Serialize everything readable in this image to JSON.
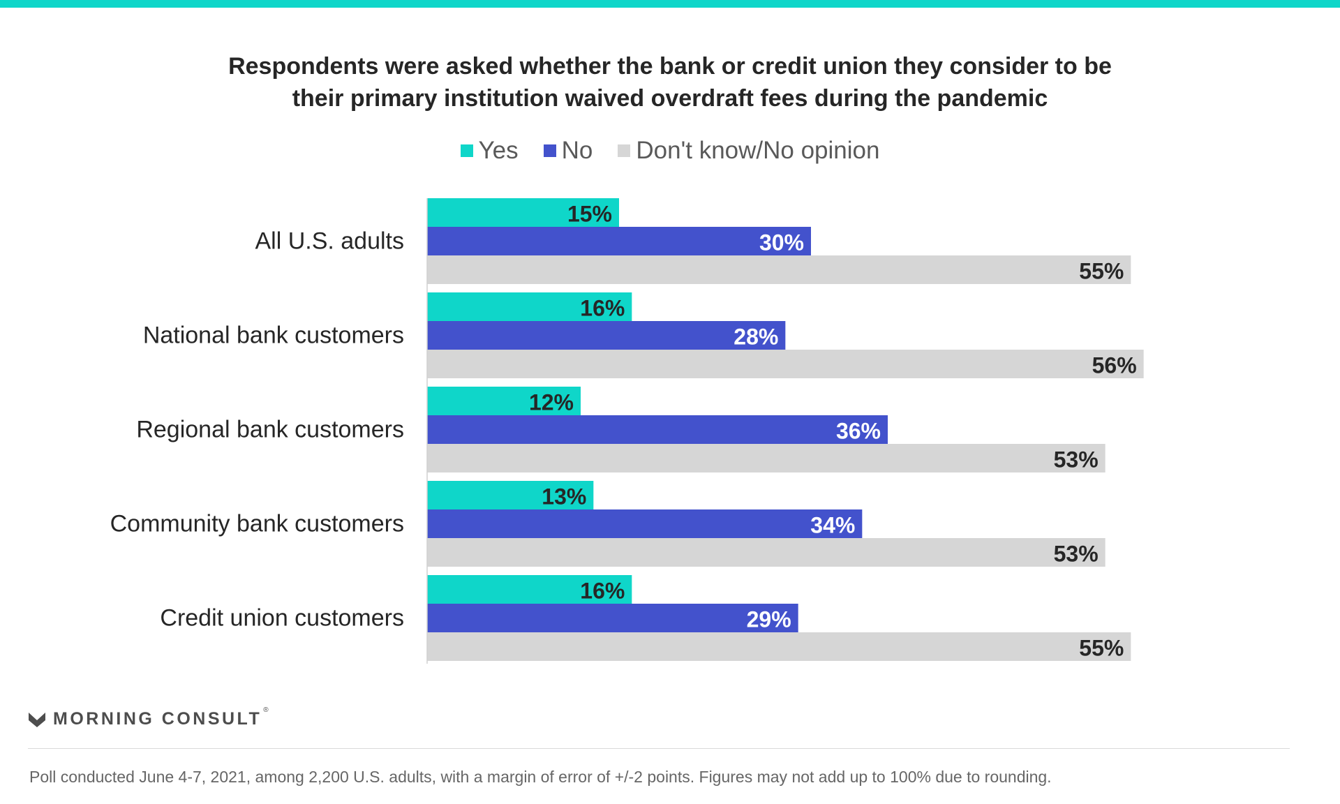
{
  "chart_data": {
    "type": "bar",
    "orientation": "horizontal",
    "title": "Respondents were asked whether the bank or credit union they consider to be their primary institution waived overdraft fees during the pandemic",
    "title_lines": [
      "Respondents were asked whether the bank or credit union they consider to be",
      "their primary institution waived overdraft fees during the pandemic"
    ],
    "categories": [
      "All U.S. adults",
      "National bank customers",
      "Regional bank customers",
      "Community bank customers",
      "Credit union customers"
    ],
    "series": [
      {
        "name": "Yes",
        "color": "#0fd6c9",
        "label_color": "#262626",
        "values": [
          15,
          16,
          12,
          13,
          16
        ],
        "labels": [
          "15%",
          "16%",
          "12%",
          "13%",
          "16%"
        ]
      },
      {
        "name": "No",
        "color": "#4352cc",
        "label_color": "#ffffff",
        "values": [
          30,
          28,
          36,
          34,
          29
        ],
        "labels": [
          "30%",
          "28%",
          "36%",
          "34%",
          "29%"
        ]
      },
      {
        "name": "Don't know/No opinion",
        "color": "#d6d6d6",
        "label_color": "#262626",
        "values": [
          55,
          56,
          53,
          53,
          55
        ],
        "labels": [
          "55%",
          "56%",
          "53%",
          "53%",
          "55%"
        ]
      }
    ],
    "xlim": [
      0,
      60
    ],
    "grid": false,
    "legend": "top-center"
  },
  "accent_color": "#0fd6c9",
  "brand": {
    "name": "MORNING CONSULT",
    "mark": "®",
    "icon": "morning-consult-logo-icon"
  },
  "footnote": "Poll conducted June 4-7, 2021, among 2,200 U.S. adults, with a margin of error of +/-2 points. Figures may not add up to 100% due to rounding."
}
